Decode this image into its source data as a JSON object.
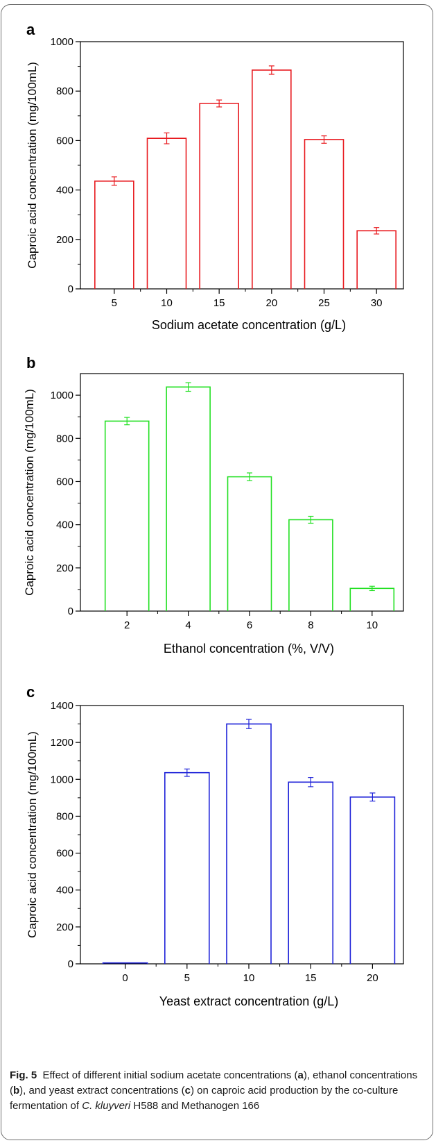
{
  "chart_data": [
    {
      "panel_label": "a",
      "type": "bar",
      "color": "#e8191e",
      "categories": [
        "5",
        "10",
        "15",
        "20",
        "25",
        "30"
      ],
      "values": [
        436,
        609,
        750,
        885,
        604,
        235
      ],
      "errors": [
        17,
        22,
        14,
        17,
        15,
        13
      ],
      "xlabel": "Sodium acetate concentration (g/L)",
      "ylabel": "Caproic acid concentration (mg/100mL)",
      "ylim": [
        0,
        1000
      ],
      "yticks": [
        "0",
        "200",
        "400",
        "600",
        "800",
        "1000"
      ]
    },
    {
      "panel_label": "b",
      "type": "bar",
      "color": "#22e022",
      "categories": [
        "2",
        "4",
        "6",
        "8",
        "10"
      ],
      "values": [
        880,
        1038,
        622,
        423,
        105
      ],
      "errors": [
        17,
        20,
        18,
        16,
        10
      ],
      "xlabel": "Ethanol concentration (%, V/V)",
      "ylabel": "Caproic acid concentration (mg/100mL)",
      "ylim": [
        0,
        1100
      ],
      "yticks": [
        "0",
        "200",
        "400",
        "600",
        "800",
        "1000"
      ]
    },
    {
      "panel_label": "c",
      "type": "bar",
      "color": "#1e22d8",
      "categories": [
        "0",
        "5",
        "10",
        "15",
        "20"
      ],
      "values": [
        5,
        1036,
        1300,
        985,
        904
      ],
      "errors": [
        0,
        20,
        25,
        25,
        22
      ],
      "xlabel": "Yeast extract concentration (g/L)",
      "ylabel": "Caproic acid concentration (mg/100mL)",
      "ylim": [
        0,
        1400
      ],
      "yticks": [
        "0",
        "200",
        "400",
        "600",
        "800",
        "1000",
        "1200",
        "1400"
      ]
    }
  ],
  "caption": {
    "fig_label": "Fig. 5",
    "part1": "Effect of different initial sodium acetate concentrations (",
    "a": "a",
    "part2": "), ethanol concentrations (",
    "b": "b",
    "part3": "), and yeast extract concentrations (",
    "c": "c",
    "part4": ") on caproic acid production by the co-culture fermentation of ",
    "organism": "C. kluyveri",
    "part5": " H588 and Methanogen 166"
  }
}
